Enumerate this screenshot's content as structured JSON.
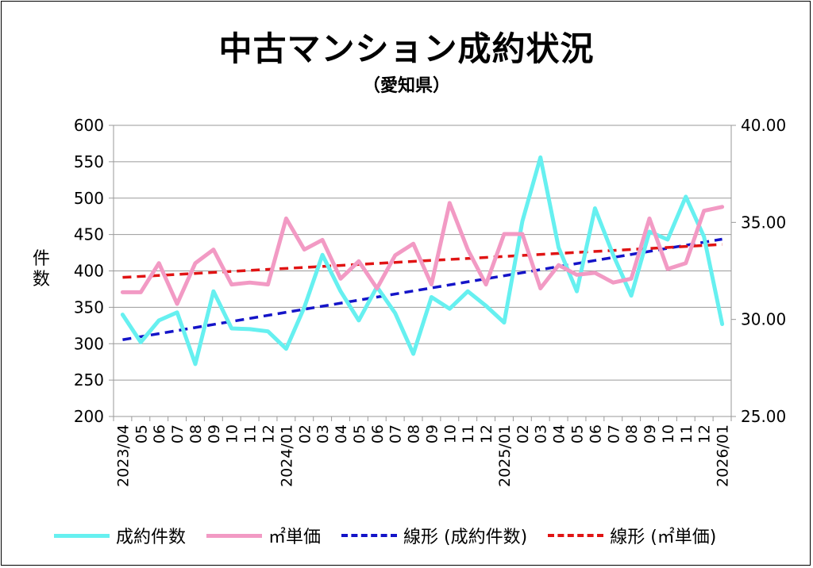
{
  "chart_data": {
    "type": "line",
    "title": "中古マンション成約状況",
    "subtitle": "（愛知県）",
    "ylabel_left": "件数",
    "y_left": {
      "min": 200,
      "max": 600,
      "ticks": [
        "200",
        "250",
        "300",
        "350",
        "400",
        "450",
        "500",
        "550",
        "600"
      ]
    },
    "y_right": {
      "min": 25,
      "max": 40,
      "ticks": [
        "25.00",
        "30.00",
        "35.00",
        "40.00"
      ]
    },
    "categories": [
      "2023/04",
      "05",
      "06",
      "07",
      "08",
      "09",
      "10",
      "11",
      "12",
      "2024/01",
      "02",
      "03",
      "04",
      "05",
      "06",
      "07",
      "08",
      "09",
      "10",
      "11",
      "12",
      "2025/01",
      "02",
      "03",
      "04",
      "05",
      "06",
      "07",
      "08",
      "09",
      "10",
      "11",
      "12",
      "2026/01"
    ],
    "grid": true,
    "series": [
      {
        "name": "成約件数",
        "axis": "left",
        "color": "#66f0f0",
        "style": "solid",
        "values": [
          340,
          302,
          332,
          343,
          272,
          372,
          321,
          320,
          317,
          293,
          350,
          422,
          372,
          332,
          378,
          342,
          286,
          364,
          348,
          372,
          352,
          329,
          468,
          556,
          432,
          372,
          486,
          422,
          366,
          454,
          443,
          502,
          447,
          327
        ]
      },
      {
        "name": "㎡単価",
        "axis": "right",
        "color": "#f29ac4",
        "style": "solid",
        "values": [
          31.4,
          31.4,
          32.9,
          30.8,
          32.9,
          33.6,
          31.8,
          31.9,
          31.8,
          35.2,
          33.6,
          34.1,
          32.1,
          33.0,
          31.6,
          33.3,
          33.9,
          31.8,
          36.0,
          33.6,
          31.8,
          34.4,
          34.4,
          31.6,
          32.8,
          32.3,
          32.4,
          31.9,
          32.1,
          35.2,
          32.6,
          32.9,
          35.6,
          35.8
        ]
      },
      {
        "name": "線形 (成約件数)",
        "axis": "left",
        "color": "#1414c8",
        "style": "dashed",
        "trend_of": "成約件数"
      },
      {
        "name": "線形 (㎡単価)",
        "axis": "right",
        "color": "#e01414",
        "style": "dashed",
        "trend_of": "㎡単価"
      }
    ],
    "legend": "bottom"
  }
}
